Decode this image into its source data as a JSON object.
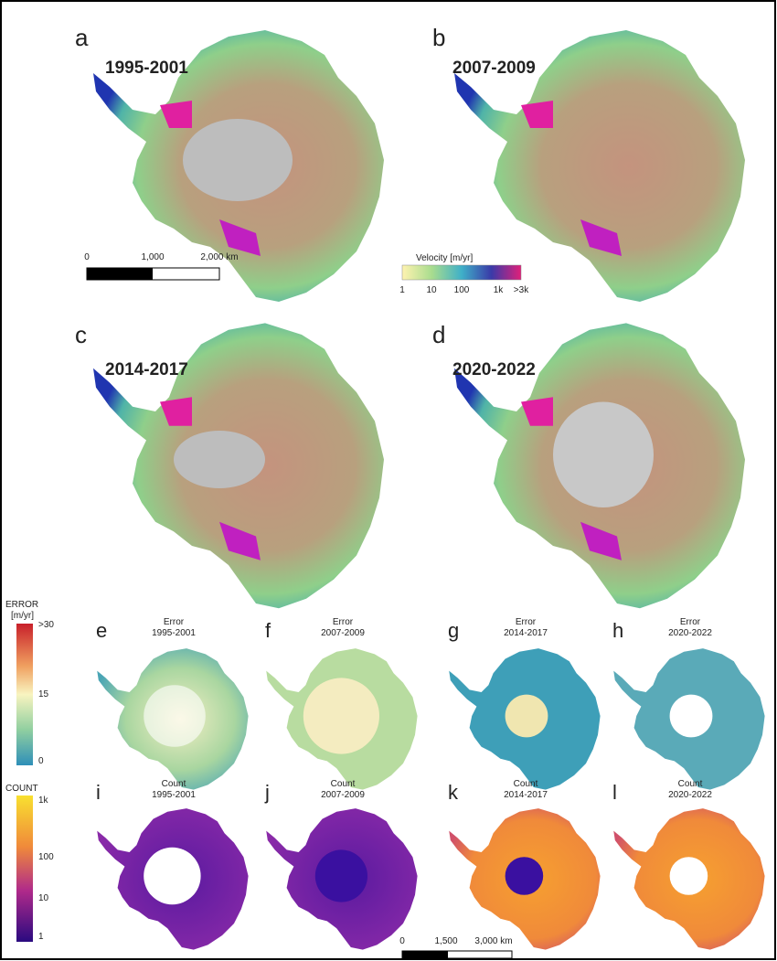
{
  "velocity_panels": [
    {
      "letter": "a",
      "period": "1995-2001"
    },
    {
      "letter": "b",
      "period": "2007-2009"
    },
    {
      "letter": "c",
      "period": "2014-2017"
    },
    {
      "letter": "d",
      "period": "2020-2022"
    }
  ],
  "velocity_legend": {
    "title": "Velocity [m/yr]",
    "ticks": [
      "1",
      "10",
      "100",
      "1k",
      ">3k"
    ]
  },
  "scale_bar_top": {
    "ticks": [
      "0",
      "1,000",
      "2,000 km"
    ]
  },
  "error_legend": {
    "title": [
      "ERROR",
      "[m/yr]"
    ],
    "ticks": [
      ">30",
      "15",
      "0"
    ]
  },
  "error_panels": [
    {
      "letter": "e",
      "title": "Error",
      "period": "1995-2001"
    },
    {
      "letter": "f",
      "title": "Error",
      "period": "2007-2009"
    },
    {
      "letter": "g",
      "title": "Error",
      "period": "2014-2017"
    },
    {
      "letter": "h",
      "title": "Error",
      "period": "2020-2022"
    }
  ],
  "count_legend": {
    "title": "COUNT",
    "ticks": [
      "1k",
      "100",
      "10",
      "1"
    ]
  },
  "count_panels": [
    {
      "letter": "i",
      "title": "Count",
      "period": "1995-2001"
    },
    {
      "letter": "j",
      "title": "Count",
      "period": "2007-2009"
    },
    {
      "letter": "k",
      "title": "Count",
      "period": "2014-2017"
    },
    {
      "letter": "l",
      "title": "Count",
      "period": "2020-2022"
    }
  ],
  "scale_bar_bottom": {
    "ticks": [
      "0",
      "1,500",
      "3,000 km"
    ]
  }
}
